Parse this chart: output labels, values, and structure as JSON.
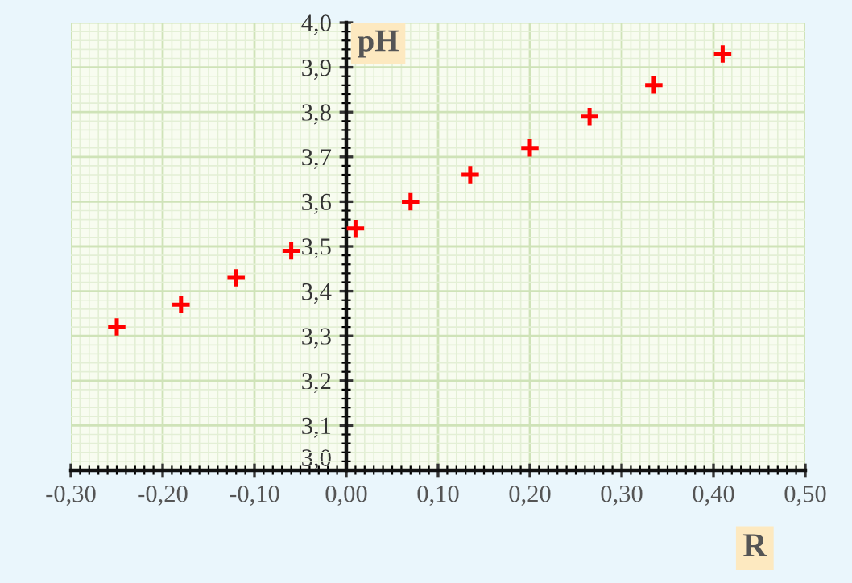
{
  "chart_data": {
    "type": "scatter",
    "xlabel": "R",
    "ylabel": "pH",
    "marker": "cross",
    "grid": true,
    "legend": false,
    "x": [
      -0.25,
      -0.18,
      -0.12,
      -0.06,
      0.01,
      0.07,
      0.135,
      0.2,
      0.265,
      0.335,
      0.41
    ],
    "series": [
      {
        "color": "#ff0000",
        "values": [
          3.32,
          3.37,
          3.43,
          3.49,
          3.54,
          3.6,
          3.66,
          3.72,
          3.79,
          3.86,
          3.93
        ]
      }
    ],
    "xlim": [
      -0.3,
      0.5
    ],
    "ylim": [
      3.0,
      4.0
    ],
    "xticks": [
      {
        "value": -0.3,
        "label": "-0,30"
      },
      {
        "value": -0.2,
        "label": "-0,20"
      },
      {
        "value": -0.1,
        "label": "-0,10"
      },
      {
        "value": 0.0,
        "label": "0,00"
      },
      {
        "value": 0.1,
        "label": "0,10"
      },
      {
        "value": 0.2,
        "label": "0,20"
      },
      {
        "value": 0.3,
        "label": "0,30"
      },
      {
        "value": 0.4,
        "label": "0,40"
      },
      {
        "value": 0.5,
        "label": "0,50"
      }
    ],
    "yticks": [
      {
        "value": 3.0,
        "label": "3,0"
      },
      {
        "value": 3.1,
        "label": "3,1"
      },
      {
        "value": 3.2,
        "label": "3,2"
      },
      {
        "value": 3.3,
        "label": "3,3"
      },
      {
        "value": 3.4,
        "label": "3,4"
      },
      {
        "value": 3.5,
        "label": "3,5"
      },
      {
        "value": 3.6,
        "label": "3,6"
      },
      {
        "value": 3.7,
        "label": "3,7"
      },
      {
        "value": 3.8,
        "label": "3,8"
      },
      {
        "value": 3.9,
        "label": "3,9"
      },
      {
        "value": 4.0,
        "label": "4,0"
      }
    ]
  }
}
